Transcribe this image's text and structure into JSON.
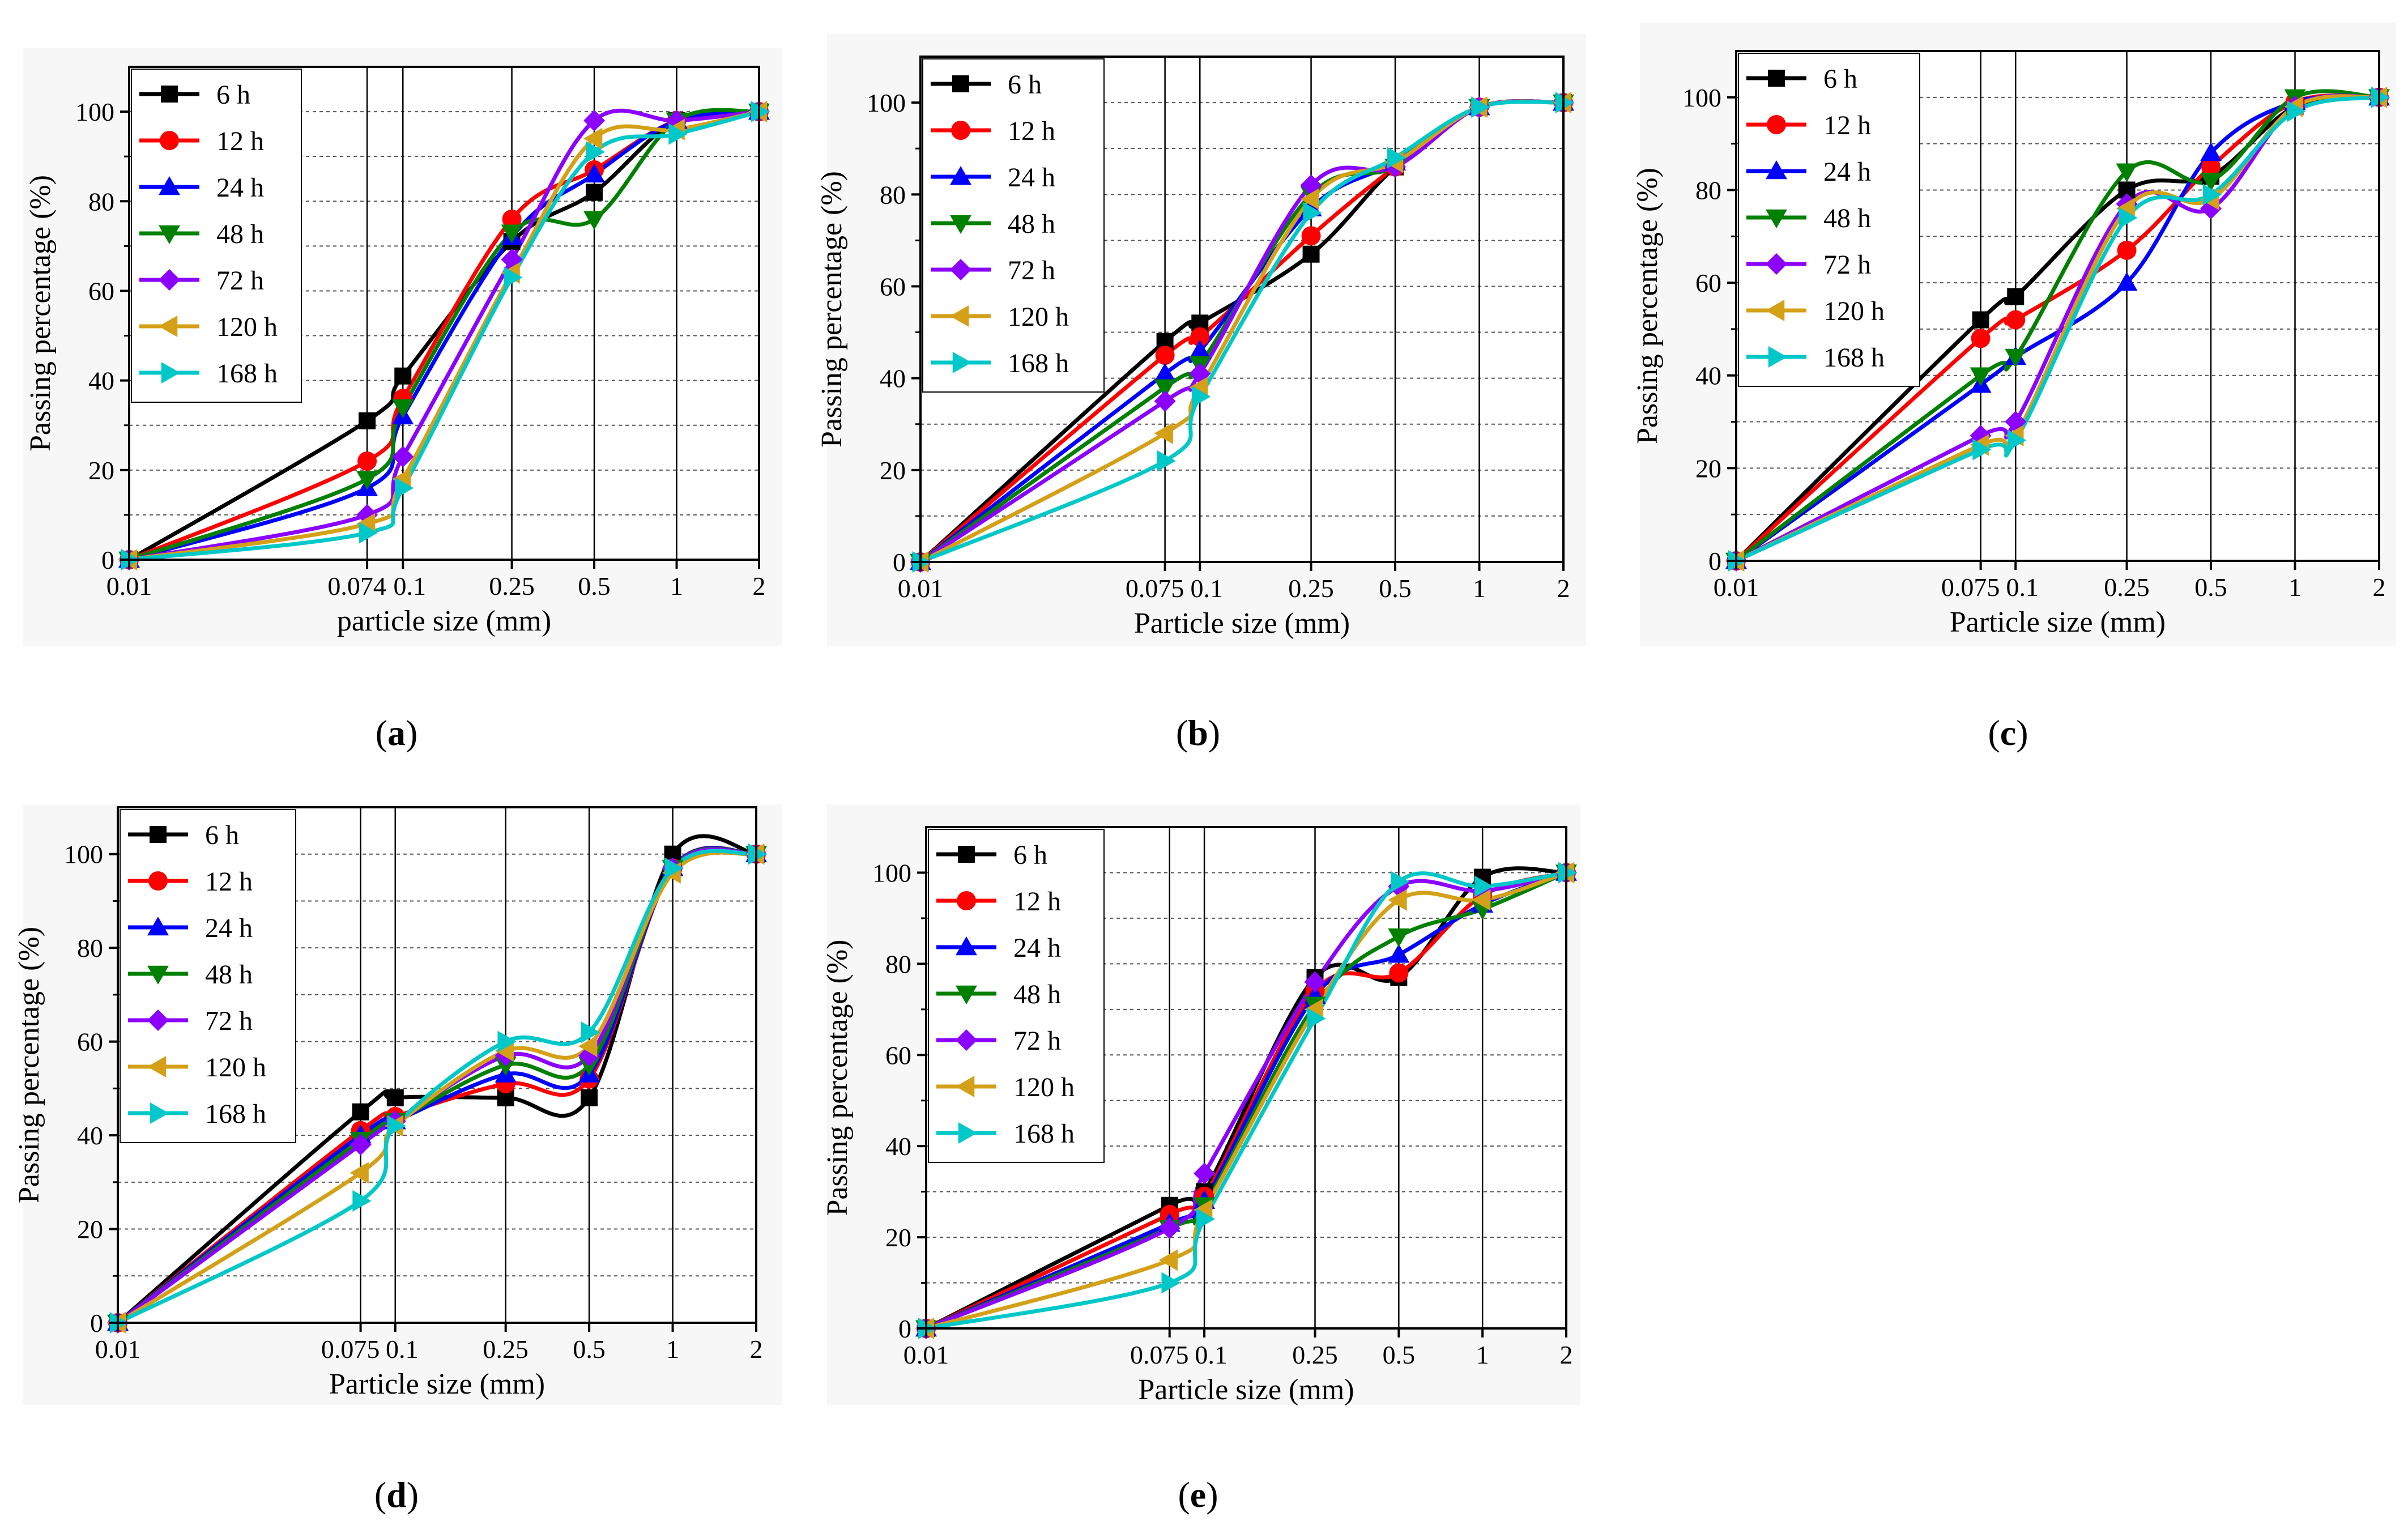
{
  "series_styles": [
    {
      "name": "6 h",
      "color": "#000000",
      "marker": "square"
    },
    {
      "name": "12 h",
      "color": "#ff0000",
      "marker": "circle"
    },
    {
      "name": "24 h",
      "color": "#0000ff",
      "marker": "triangle-up"
    },
    {
      "name": "48 h",
      "color": "#008000",
      "marker": "triangle-down"
    },
    {
      "name": "72 h",
      "color": "#8b00ff",
      "marker": "diamond"
    },
    {
      "name": "120 h",
      "color": "#d4a017",
      "marker": "triangle-left"
    },
    {
      "name": "168 h",
      "color": "#00c8c8",
      "marker": "triangle-right"
    }
  ],
  "chart_data": [
    {
      "panel": "(a)",
      "type": "line",
      "xscale": "log",
      "xlim": [
        0.01,
        2
      ],
      "ylim": [
        0,
        110
      ],
      "xlabel": "particle size (mm)",
      "ylabel": "Passing percentage (%)",
      "xtick_labels": [
        "0.01",
        "0.074",
        "0.1",
        "0.25",
        "0.5",
        "1",
        "2"
      ],
      "ytick_labels": [
        "0",
        "20",
        "40",
        "60",
        "80",
        "100"
      ],
      "x": [
        0.01,
        0.074,
        0.1,
        0.25,
        0.5,
        1,
        2
      ],
      "series": [
        {
          "name": "6 h",
          "values": [
            0,
            31,
            41,
            71,
            82,
            98,
            100
          ]
        },
        {
          "name": "12 h",
          "values": [
            0,
            22,
            36,
            76,
            87,
            98,
            100
          ]
        },
        {
          "name": "24 h",
          "values": [
            0,
            16,
            32,
            72,
            86,
            98,
            100
          ]
        },
        {
          "name": "48 h",
          "values": [
            0,
            18,
            34,
            73,
            76,
            98,
            100
          ]
        },
        {
          "name": "72 h",
          "values": [
            0,
            10,
            23,
            67,
            98,
            98,
            100
          ]
        },
        {
          "name": "120 h",
          "values": [
            0,
            8,
            18,
            64,
            94,
            96,
            100
          ]
        },
        {
          "name": "168 h",
          "values": [
            0,
            6,
            16,
            63,
            91,
            95,
            100
          ]
        }
      ]
    },
    {
      "panel": "(b)",
      "type": "line",
      "xscale": "log",
      "xlim": [
        0.01,
        2
      ],
      "ylim": [
        0,
        110
      ],
      "xlabel": "Particle size (mm)",
      "ylabel": "Passing percentage (%)",
      "xtick_labels": [
        "0.01",
        "0.075",
        "0.1",
        "0.25",
        "0.5",
        "1",
        "2"
      ],
      "ytick_labels": [
        "0",
        "20",
        "40",
        "60",
        "80",
        "100"
      ],
      "x": [
        0.01,
        0.075,
        0.1,
        0.25,
        0.5,
        1,
        2
      ],
      "series": [
        {
          "name": "6 h",
          "values": [
            0,
            48,
            52,
            67,
            86,
            99,
            100
          ]
        },
        {
          "name": "12 h",
          "values": [
            0,
            45,
            49,
            71,
            86,
            99,
            100
          ]
        },
        {
          "name": "24 h",
          "values": [
            0,
            41,
            46,
            77,
            87,
            99,
            100
          ]
        },
        {
          "name": "48 h",
          "values": [
            0,
            38,
            43,
            80,
            86,
            99,
            100
          ]
        },
        {
          "name": "72 h",
          "values": [
            0,
            35,
            41,
            82,
            86,
            99,
            100
          ]
        },
        {
          "name": "120 h",
          "values": [
            0,
            28,
            38,
            79,
            87,
            99,
            100
          ]
        },
        {
          "name": "168 h",
          "values": [
            0,
            22,
            36,
            76,
            88,
            99,
            100
          ]
        }
      ]
    },
    {
      "panel": "(c)",
      "type": "line",
      "xscale": "log",
      "xlim": [
        0.01,
        2
      ],
      "ylim": [
        0,
        110
      ],
      "xlabel": "Particle size (mm)",
      "ylabel": "Passing percentage (%)",
      "xtick_labels": [
        "0.01",
        "0.075",
        "0.1",
        "0.25",
        "0.5",
        "1",
        "2"
      ],
      "ytick_labels": [
        "0",
        "20",
        "40",
        "60",
        "80",
        "100"
      ],
      "x": [
        0.01,
        0.075,
        0.1,
        0.25,
        0.5,
        1,
        2
      ],
      "series": [
        {
          "name": "6 h",
          "values": [
            0,
            52,
            57,
            80,
            83,
            98,
            100
          ]
        },
        {
          "name": "12 h",
          "values": [
            0,
            48,
            52,
            67,
            85,
            99,
            100
          ]
        },
        {
          "name": "24 h",
          "values": [
            0,
            38,
            44,
            60,
            88,
            99,
            100
          ]
        },
        {
          "name": "48 h",
          "values": [
            0,
            40,
            44,
            84,
            82,
            100,
            100
          ]
        },
        {
          "name": "72 h",
          "values": [
            0,
            27,
            30,
            77,
            76,
            98,
            100
          ]
        },
        {
          "name": "120 h",
          "values": [
            0,
            25,
            27,
            76,
            78,
            98,
            100
          ]
        },
        {
          "name": "168 h",
          "values": [
            0,
            24,
            26,
            74,
            79,
            97,
            100
          ]
        }
      ]
    },
    {
      "panel": "(d)",
      "type": "line",
      "xscale": "log",
      "xlim": [
        0.01,
        2
      ],
      "ylim": [
        0,
        110
      ],
      "xlabel": "Particle size (mm)",
      "ylabel": "Passing percentage (%)",
      "xtick_labels": [
        "0.01",
        "0.075",
        "0.1",
        "0.25",
        "0.5",
        "1",
        "2"
      ],
      "ytick_labels": [
        "0",
        "20",
        "40",
        "60",
        "80",
        "100"
      ],
      "x": [
        0.01,
        0.075,
        0.1,
        0.25,
        0.5,
        1,
        2
      ],
      "series": [
        {
          "name": "6 h",
          "values": [
            0,
            45,
            48,
            48,
            48,
            100,
            100
          ]
        },
        {
          "name": "12 h",
          "values": [
            0,
            41,
            44,
            51,
            52,
            97,
            100
          ]
        },
        {
          "name": "24 h",
          "values": [
            0,
            40,
            43,
            53,
            53,
            97,
            100
          ]
        },
        {
          "name": "48 h",
          "values": [
            0,
            39,
            43,
            55,
            55,
            97,
            100
          ]
        },
        {
          "name": "72 h",
          "values": [
            0,
            38,
            43,
            57,
            57,
            97,
            100
          ]
        },
        {
          "name": "120 h",
          "values": [
            0,
            32,
            42,
            58,
            59,
            96,
            100
          ]
        },
        {
          "name": "168 h",
          "values": [
            0,
            26,
            42,
            60,
            62,
            97,
            100
          ]
        }
      ]
    },
    {
      "panel": "(e)",
      "type": "line",
      "xscale": "log",
      "xlim": [
        0.01,
        2
      ],
      "ylim": [
        0,
        110
      ],
      "xlabel": "Particle size (mm)",
      "ylabel": "Passing percentage (%)",
      "xtick_labels": [
        "0.01",
        "0.075",
        "0.1",
        "0.25",
        "0.5",
        "1",
        "2"
      ],
      "ytick_labels": [
        "0",
        "20",
        "40",
        "60",
        "80",
        "100"
      ],
      "x": [
        0.01,
        0.075,
        0.1,
        0.25,
        0.5,
        1,
        2
      ],
      "series": [
        {
          "name": "6 h",
          "values": [
            0,
            27,
            30,
            77,
            77,
            99,
            100
          ]
        },
        {
          "name": "12 h",
          "values": [
            0,
            25,
            29,
            74,
            78,
            95,
            100
          ]
        },
        {
          "name": "24 h",
          "values": [
            0,
            23,
            28,
            73,
            82,
            93,
            100
          ]
        },
        {
          "name": "48 h",
          "values": [
            0,
            22,
            27,
            71,
            86,
            92,
            100
          ]
        },
        {
          "name": "72 h",
          "values": [
            0,
            22,
            34,
            76,
            97,
            96,
            100
          ]
        },
        {
          "name": "120 h",
          "values": [
            0,
            15,
            26,
            70,
            94,
            94,
            100
          ]
        },
        {
          "name": "168 h",
          "values": [
            0,
            10,
            24,
            68,
            98,
            97,
            100
          ]
        }
      ]
    }
  ]
}
